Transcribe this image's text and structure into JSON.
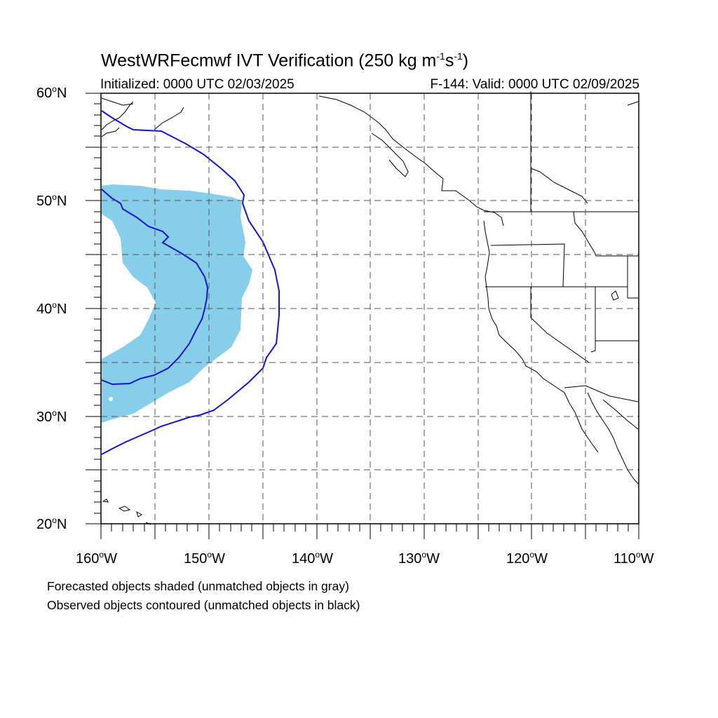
{
  "title": {
    "main": "WestWRFecmwf IVT Verification (250 kg m",
    "sup1": "-1",
    "mid": "s",
    "sup2": "-1",
    "end": ")"
  },
  "subtitle_left": "Initialized: 0000 UTC 02/03/2025",
  "subtitle_right": "F-144: Valid: 0000 UTC 02/09/2025",
  "lat_labels": [
    {
      "num": "60",
      "deg": "o",
      "dir": "N"
    },
    {
      "num": "50",
      "deg": "o",
      "dir": "N"
    },
    {
      "num": "40",
      "deg": "o",
      "dir": "N"
    },
    {
      "num": "30",
      "deg": "o",
      "dir": "N"
    },
    {
      "num": "20",
      "deg": "o",
      "dir": "N"
    }
  ],
  "lon_labels": [
    {
      "num": "160",
      "deg": "o",
      "dir": "W"
    },
    {
      "num": "150",
      "deg": "o",
      "dir": "W"
    },
    {
      "num": "140",
      "deg": "o",
      "dir": "W"
    },
    {
      "num": "130",
      "deg": "o",
      "dir": "W"
    },
    {
      "num": "120",
      "deg": "o",
      "dir": "W"
    },
    {
      "num": "110",
      "deg": "o",
      "dir": "W"
    }
  ],
  "footnotes": {
    "line1": "Forecasted objects shaded (unmatched objects in gray)",
    "line2": "Observed objects contoured (unmatched objects in black)"
  },
  "colors": {
    "forecast_fill": "#87ceeb",
    "observed_contour": "#1414d2",
    "coastline": "#000000",
    "grid": "#555555"
  }
}
